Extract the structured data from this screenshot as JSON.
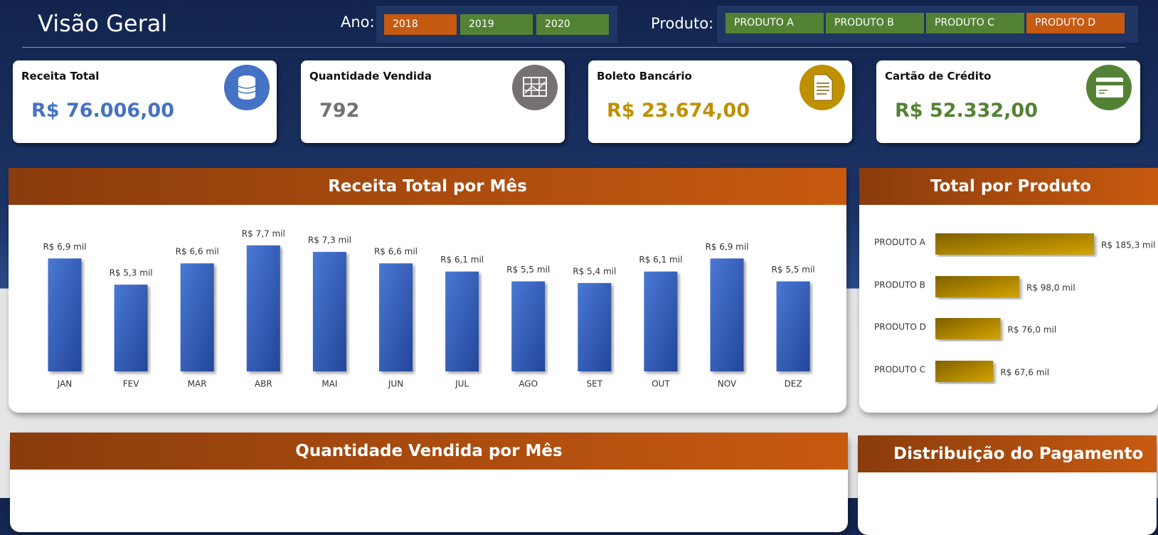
{
  "header": {
    "title": "Visão Geral",
    "year_label": "Ano:",
    "product_label": "Produto:"
  },
  "filters": {
    "years": [
      {
        "label": "2018",
        "color": "#c55a11"
      },
      {
        "label": "2019",
        "color": "#548235"
      },
      {
        "label": "2020",
        "color": "#548235"
      }
    ],
    "products": [
      {
        "label": "PRODUTO A",
        "color": "#548235"
      },
      {
        "label": "PRODUTO B",
        "color": "#548235"
      },
      {
        "label": "PRODUTO C",
        "color": "#548235"
      },
      {
        "label": "PRODUTO D",
        "color": "#c55a11"
      }
    ]
  },
  "kpis": [
    {
      "title": "Receita Total",
      "value": "R$ 76.006,00",
      "color": "#4472c4"
    },
    {
      "title": "Quantidade Vendida",
      "value": "792",
      "color": "#767171"
    },
    {
      "title": "Boleto Bancário",
      "value": "R$ 23.674,00",
      "color": "#bf9000"
    },
    {
      "title": "Cartão de Crédito",
      "value": "R$ 52.332,00",
      "color": "#548235"
    }
  ],
  "chart_data": [
    {
      "type": "bar",
      "title": "Receita Total por Mês",
      "categories": [
        "JAN",
        "FEV",
        "MAR",
        "ABR",
        "MAI",
        "JUN",
        "JUL",
        "AGO",
        "SET",
        "OUT",
        "NOV",
        "DEZ"
      ],
      "values": [
        6.9,
        5.3,
        6.6,
        7.7,
        7.3,
        6.6,
        6.1,
        5.5,
        5.4,
        6.1,
        6.9,
        5.5
      ],
      "value_labels": [
        "R$ 6,9 mil",
        "R$ 5,3 mil",
        "R$ 6,6 mil",
        "R$ 7,7 mil",
        "R$ 7,3 mil",
        "R$ 6,6 mil",
        "R$ 6,1 mil",
        "R$ 5,5 mil",
        "R$ 5,4 mil",
        "R$ 6,1 mil",
        "R$ 6,9 mil",
        "R$ 5,5 mil"
      ],
      "color": "#3a64c0"
    },
    {
      "type": "barh",
      "title": "Total por Produto",
      "categories": [
        "PRODUTO A",
        "PRODUTO B",
        "PRODUTO D",
        "PRODUTO C"
      ],
      "values": [
        185.3,
        98.0,
        76.0,
        67.6
      ],
      "value_labels": [
        "R$ 185,3 mil",
        "R$ 98,0 mil",
        "R$ 76,0 mil",
        "R$ 67,6 mil"
      ],
      "color": "#bf9000"
    },
    {
      "type": "bar",
      "title": "Quantidade Vendida por Mês"
    },
    {
      "type": "pie",
      "title": "Distribuição do Pagamento"
    }
  ]
}
